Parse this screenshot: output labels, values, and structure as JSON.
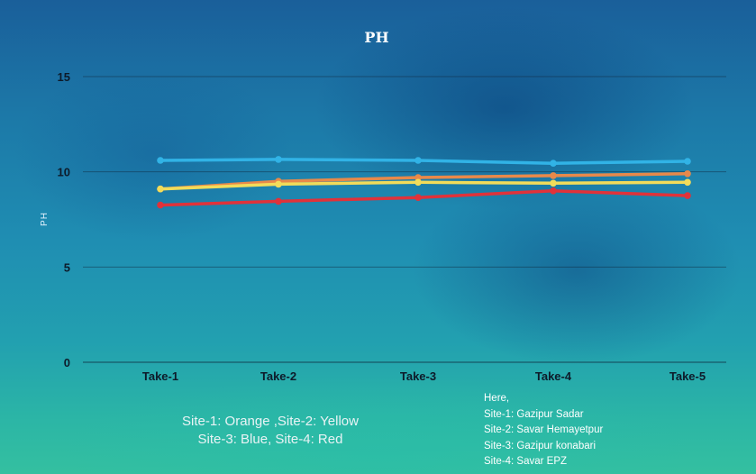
{
  "chart_data": {
    "type": "line",
    "title": "PH",
    "ylabel": "PH",
    "xlabel": "",
    "ylim": [
      0,
      15
    ],
    "yticks": [
      "0",
      "5",
      "10",
      "15"
    ],
    "categories": [
      "Take-1",
      "Take-2",
      "Take-3",
      "Take-4",
      "Take-5"
    ],
    "grid": true,
    "series": [
      {
        "values": [
          9.1,
          9.5,
          9.7,
          9.8,
          9.9
        ],
        "color": "#e8894a"
      },
      {
        "values": [
          9.1,
          9.35,
          9.45,
          9.4,
          9.45
        ],
        "color": "#f2dc5a"
      },
      {
        "values": [
          10.6,
          10.65,
          10.6,
          10.45,
          10.55
        ],
        "color": "#31b3e6"
      },
      {
        "values": [
          8.25,
          8.45,
          8.65,
          9.0,
          8.75
        ],
        "color": "#e0323a"
      }
    ]
  },
  "notes": {
    "left": [
      "Site-1: Orange ,Site-2: Yellow",
      "Site-3: Blue, Site-4: Red"
    ],
    "right": [
      "Here,",
      "Site-1: Gazipur Sadar",
      "Site-2: Savar Hemayetpur",
      "Site-3: Gazipur konabari",
      "Site-4: Savar EPZ"
    ]
  }
}
